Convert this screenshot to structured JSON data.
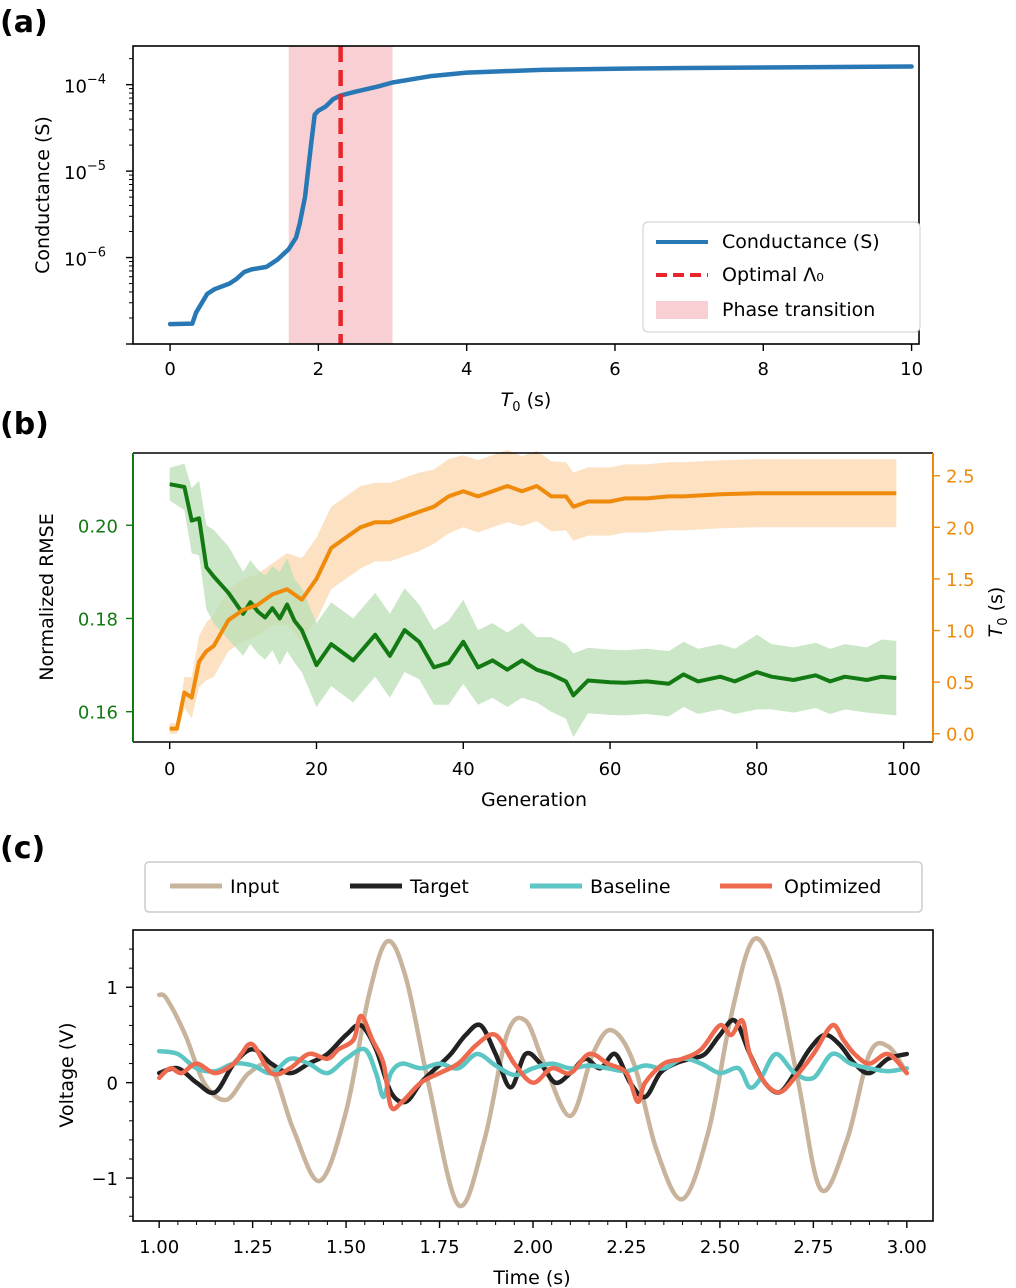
{
  "chart_data": [
    {
      "panel": "(a)",
      "type": "line",
      "xlabel": "T0 (s)",
      "xlabel_main": "T",
      "xlabel_sub": "0",
      "xlabel_unit": " (s)",
      "ylabel": "Conductance (S)",
      "yscale": "log",
      "xlim": [
        -0.5,
        10.1
      ],
      "ylim": [
        1e-07,
        0.00028
      ],
      "xticks": [
        0,
        2,
        4,
        6,
        8,
        10
      ],
      "xtick_labels": [
        "0",
        "2",
        "4",
        "6",
        "8",
        "10"
      ],
      "yticks": [
        1e-06,
        1e-05,
        0.0001
      ],
      "ytick_base": "10",
      "ytick_exponents": [
        "−6",
        "−5",
        "−4"
      ],
      "shaded_region": {
        "x0": 1.6,
        "x1": 3.0,
        "color": "#f8cfd2",
        "label": "Phase transition"
      },
      "vline": {
        "x": 2.3,
        "color": "#e8252a",
        "label": "Optimal Λ₀"
      },
      "series": [
        {
          "name": "Conductance (S)",
          "color": "#2878b5",
          "x": [
            0.0,
            0.3,
            0.35,
            0.45,
            0.5,
            0.6,
            0.8,
            0.9,
            1.0,
            1.1,
            1.3,
            1.45,
            1.6,
            1.7,
            1.75,
            1.82,
            1.9,
            1.95,
            2.0,
            2.1,
            2.2,
            2.3,
            2.5,
            2.8,
            3.0,
            3.5,
            4.0,
            5.0,
            6.0,
            7.0,
            8.0,
            9.0,
            10.0
          ],
          "y": [
            1.7e-07,
            1.72e-07,
            2.3e-07,
            3.2e-07,
            3.8e-07,
            4.3e-07,
            5e-07,
            5.7e-07,
            6.8e-07,
            7.3e-07,
            7.8e-07,
            9.5e-07,
            1.25e-06,
            1.7e-06,
            2.5e-06,
            5e-06,
            2e-05,
            4.5e-05,
            5e-05,
            5.6e-05,
            6.8e-05,
            7.5e-05,
            8.3e-05,
            9.5e-05,
            0.000106,
            0.000125,
            0.000138,
            0.000148,
            0.000153,
            0.000156,
            0.000158,
            0.00016,
            0.000162
          ]
        }
      ]
    },
    {
      "panel": "(b)",
      "type": "line",
      "xlabel": "Generation",
      "ylabel_left": "Normalized RMSE",
      "ylabel_right": "T0 (s)",
      "ylabel_right_main": "T",
      "ylabel_right_sub": "0",
      "ylabel_right_unit": " (s)",
      "xlim": [
        -5,
        104
      ],
      "ylim_left": [
        0.1535,
        0.2155
      ],
      "ylim_right": [
        -0.08,
        2.72
      ],
      "xticks": [
        0,
        20,
        40,
        60,
        80,
        100
      ],
      "xtick_labels": [
        "0",
        "20",
        "40",
        "60",
        "80",
        "100"
      ],
      "yticks_left": [
        0.16,
        0.18,
        0.2
      ],
      "ytick_labels_left": [
        "0.16",
        "0.18",
        "0.20"
      ],
      "yticks_right": [
        0.0,
        0.5,
        1.0,
        1.5,
        2.0,
        2.5
      ],
      "ytick_labels_right": [
        "0.0",
        "0.5",
        "1.0",
        "1.5",
        "2.0",
        "2.5"
      ],
      "series": [
        {
          "name": "Normalized RMSE",
          "axis": "left",
          "color": "#137a13",
          "band_color": "#b9dfb5",
          "x": [
            0,
            2,
            3,
            4,
            5,
            6,
            8,
            10,
            11,
            12,
            13,
            14,
            15,
            16,
            17,
            18,
            20,
            22,
            25,
            28,
            30,
            32,
            34,
            36,
            38,
            40,
            42,
            44,
            46,
            48,
            50,
            52,
            54,
            55,
            57,
            60,
            62,
            65,
            68,
            70,
            72,
            75,
            77,
            80,
            82,
            85,
            88,
            90,
            92,
            95,
            97,
            99
          ],
          "y": [
            0.2088,
            0.2082,
            0.201,
            0.2015,
            0.191,
            0.189,
            0.1855,
            0.181,
            0.1835,
            0.1815,
            0.1802,
            0.1822,
            0.18,
            0.183,
            0.1795,
            0.1775,
            0.17,
            0.1745,
            0.171,
            0.1765,
            0.172,
            0.1775,
            0.175,
            0.1695,
            0.1705,
            0.175,
            0.1695,
            0.171,
            0.169,
            0.171,
            0.169,
            0.168,
            0.1665,
            0.1635,
            0.1667,
            0.1663,
            0.1662,
            0.1665,
            0.166,
            0.168,
            0.1665,
            0.1675,
            0.1665,
            0.1685,
            0.1675,
            0.1668,
            0.1678,
            0.1665,
            0.1675,
            0.1668,
            0.1675,
            0.1672
          ],
          "band": [
            0.0035,
            0.005,
            0.007,
            0.008,
            0.009,
            0.01,
            0.01,
            0.009,
            0.009,
            0.009,
            0.009,
            0.009,
            0.01,
            0.01,
            0.009,
            0.009,
            0.009,
            0.009,
            0.009,
            0.009,
            0.009,
            0.009,
            0.008,
            0.008,
            0.009,
            0.009,
            0.008,
            0.008,
            0.008,
            0.008,
            0.007,
            0.008,
            0.008,
            0.009,
            0.007,
            0.007,
            0.007,
            0.007,
            0.007,
            0.007,
            0.007,
            0.007,
            0.007,
            0.008,
            0.007,
            0.007,
            0.007,
            0.007,
            0.007,
            0.007,
            0.008,
            0.008
          ]
        },
        {
          "name": "T0 (s)",
          "axis": "right",
          "color": "#f08a0b",
          "band_color": "#fbdcb8",
          "x": [
            0,
            1,
            2,
            3,
            4,
            5,
            6,
            8,
            10,
            12,
            14,
            16,
            18,
            20,
            22,
            24,
            26,
            28,
            30,
            32,
            34,
            36,
            38,
            40,
            42,
            44,
            46,
            48,
            50,
            52,
            54,
            55,
            57,
            60,
            62,
            65,
            68,
            70,
            75,
            80,
            85,
            90,
            95,
            99
          ],
          "y": [
            0.05,
            0.05,
            0.4,
            0.35,
            0.7,
            0.8,
            0.85,
            1.1,
            1.2,
            1.25,
            1.35,
            1.4,
            1.3,
            1.5,
            1.8,
            1.9,
            2.0,
            2.05,
            2.05,
            2.1,
            2.15,
            2.2,
            2.3,
            2.35,
            2.3,
            2.35,
            2.4,
            2.35,
            2.4,
            2.3,
            2.3,
            2.2,
            2.25,
            2.25,
            2.28,
            2.28,
            2.3,
            2.3,
            2.32,
            2.33,
            2.33,
            2.33,
            2.33,
            2.33
          ],
          "band": [
            0.05,
            0.05,
            0.15,
            0.2,
            0.25,
            0.28,
            0.3,
            0.3,
            0.3,
            0.3,
            0.3,
            0.35,
            0.4,
            0.4,
            0.4,
            0.4,
            0.4,
            0.38,
            0.38,
            0.38,
            0.38,
            0.36,
            0.36,
            0.35,
            0.35,
            0.35,
            0.35,
            0.34,
            0.34,
            0.34,
            0.33,
            0.33,
            0.33,
            0.33,
            0.33,
            0.33,
            0.33,
            0.33,
            0.33,
            0.33,
            0.33,
            0.33,
            0.33,
            0.33
          ]
        }
      ]
    },
    {
      "panel": "(c)",
      "type": "line",
      "xlabel": "Time (s)",
      "ylabel": "Voltage (V)",
      "xlim": [
        0.93,
        3.07
      ],
      "ylim": [
        -1.45,
        1.6
      ],
      "xticks": [
        1.0,
        1.25,
        1.5,
        1.75,
        2.0,
        2.25,
        2.5,
        2.75,
        3.0
      ],
      "xtick_labels": [
        "1.00",
        "1.25",
        "1.50",
        "1.75",
        "2.00",
        "2.25",
        "2.50",
        "2.75",
        "3.00"
      ],
      "yticks": [
        -1,
        0,
        1
      ],
      "ytick_labels": [
        "−1",
        "0",
        "1"
      ],
      "legend_position": "top, outside",
      "series": [
        {
          "name": "Input",
          "color": "#c8b49c",
          "x": [
            1.0,
            1.02,
            1.07,
            1.12,
            1.18,
            1.24,
            1.3,
            1.36,
            1.43,
            1.5,
            1.56,
            1.61,
            1.66,
            1.72,
            1.8,
            1.87,
            1.93,
            1.98,
            2.03,
            2.1,
            2.16,
            2.21,
            2.27,
            2.33,
            2.4,
            2.47,
            2.53,
            2.59,
            2.65,
            2.71,
            2.77,
            2.84,
            2.9,
            2.95,
            3.0
          ],
          "y": [
            0.92,
            0.88,
            0.5,
            0.0,
            -0.18,
            0.1,
            0.15,
            -0.5,
            -1.03,
            -0.3,
            0.9,
            1.48,
            1.1,
            0.0,
            -1.28,
            -0.6,
            0.5,
            0.65,
            0.2,
            -0.35,
            0.3,
            0.55,
            0.2,
            -0.7,
            -1.22,
            -0.5,
            0.7,
            1.5,
            1.1,
            0.0,
            -1.12,
            -0.6,
            0.3,
            0.38,
            0.1
          ]
        },
        {
          "name": "Target",
          "color": "#222222",
          "x": [
            1.0,
            1.05,
            1.1,
            1.15,
            1.2,
            1.25,
            1.3,
            1.35,
            1.4,
            1.45,
            1.5,
            1.54,
            1.58,
            1.62,
            1.66,
            1.7,
            1.74,
            1.78,
            1.82,
            1.86,
            1.9,
            1.94,
            1.98,
            2.02,
            2.06,
            2.1,
            2.14,
            2.18,
            2.22,
            2.26,
            2.3,
            2.34,
            2.38,
            2.42,
            2.46,
            2.5,
            2.54,
            2.58,
            2.62,
            2.66,
            2.7,
            2.74,
            2.78,
            2.82,
            2.86,
            2.9,
            2.95,
            3.0
          ],
          "y": [
            0.1,
            0.15,
            0.0,
            -0.1,
            0.2,
            0.35,
            0.2,
            0.1,
            0.2,
            0.3,
            0.5,
            0.6,
            0.35,
            -0.1,
            -0.2,
            0.0,
            0.15,
            0.3,
            0.5,
            0.6,
            0.3,
            -0.05,
            0.3,
            0.2,
            0.0,
            0.1,
            0.25,
            0.15,
            0.3,
            0.0,
            -0.15,
            0.1,
            0.2,
            0.25,
            0.3,
            0.5,
            0.65,
            0.3,
            0.0,
            -0.1,
            0.1,
            0.35,
            0.5,
            0.4,
            0.2,
            0.1,
            0.25,
            0.3
          ]
        },
        {
          "name": "Baseline",
          "color": "#5cc6c4",
          "x": [
            1.0,
            1.05,
            1.1,
            1.15,
            1.2,
            1.25,
            1.3,
            1.35,
            1.4,
            1.45,
            1.5,
            1.55,
            1.58,
            1.6,
            1.62,
            1.65,
            1.7,
            1.75,
            1.8,
            1.85,
            1.9,
            1.95,
            2.0,
            2.05,
            2.1,
            2.15,
            2.2,
            2.25,
            2.3,
            2.35,
            2.4,
            2.45,
            2.5,
            2.55,
            2.58,
            2.61,
            2.65,
            2.7,
            2.75,
            2.8,
            2.85,
            2.9,
            2.95,
            3.0
          ],
          "y": [
            0.33,
            0.3,
            0.15,
            0.12,
            0.2,
            0.18,
            0.1,
            0.25,
            0.2,
            0.1,
            0.25,
            0.35,
            0.1,
            -0.15,
            0.1,
            0.2,
            0.15,
            0.2,
            0.15,
            0.3,
            0.18,
            0.08,
            0.15,
            0.2,
            0.15,
            0.18,
            0.15,
            0.12,
            0.18,
            0.15,
            0.25,
            0.2,
            0.1,
            0.15,
            -0.05,
            0.05,
            0.3,
            0.1,
            0.05,
            0.3,
            0.2,
            0.15,
            0.12,
            0.15
          ]
        },
        {
          "name": "Optimized",
          "color": "#ee6a4f",
          "x": [
            1.0,
            1.03,
            1.06,
            1.1,
            1.15,
            1.2,
            1.22,
            1.25,
            1.3,
            1.35,
            1.4,
            1.45,
            1.48,
            1.52,
            1.54,
            1.57,
            1.6,
            1.62,
            1.65,
            1.7,
            1.75,
            1.8,
            1.85,
            1.9,
            1.95,
            2.0,
            2.05,
            2.1,
            2.15,
            2.2,
            2.25,
            2.28,
            2.3,
            2.35,
            2.4,
            2.45,
            2.5,
            2.53,
            2.56,
            2.58,
            2.62,
            2.66,
            2.7,
            2.75,
            2.8,
            2.83,
            2.86,
            2.9,
            2.95,
            3.0
          ],
          "y": [
            0.05,
            0.15,
            0.1,
            0.2,
            0.1,
            0.2,
            0.3,
            0.4,
            0.1,
            0.15,
            0.3,
            0.25,
            0.35,
            0.45,
            0.7,
            0.45,
            0.2,
            -0.25,
            -0.2,
            0.0,
            0.1,
            0.2,
            0.4,
            0.5,
            0.2,
            0.0,
            0.15,
            0.1,
            0.3,
            0.2,
            0.1,
            -0.2,
            0.0,
            0.2,
            0.25,
            0.35,
            0.6,
            0.5,
            0.65,
            0.3,
            0.0,
            -0.1,
            0.05,
            0.3,
            0.6,
            0.45,
            0.3,
            0.2,
            0.3,
            0.1
          ]
        }
      ]
    }
  ]
}
